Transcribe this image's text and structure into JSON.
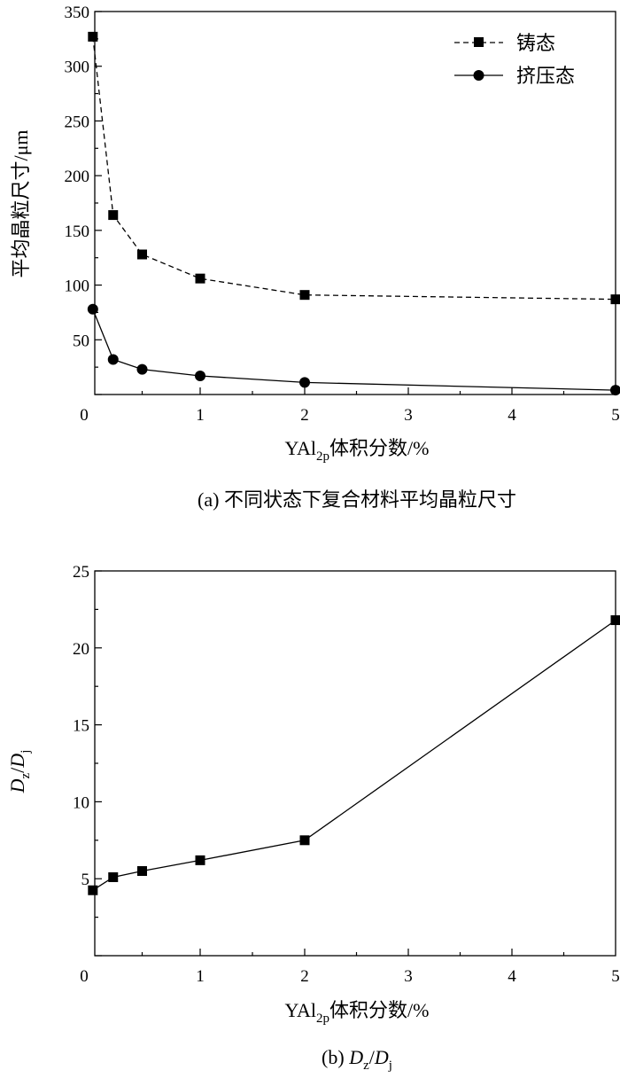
{
  "chart_data": [
    {
      "type": "line",
      "x_ticks": [
        "0",
        "1",
        "2",
        "3",
        "4",
        "5"
      ],
      "y_ticks": [
        "50",
        "100",
        "150",
        "200",
        "250",
        "300",
        "350"
      ],
      "xlabel": {
        "main": "YAl",
        "sub": "2p",
        "rest": "体积分数/%"
      },
      "ylabel": "平均晶粒尺寸/μm",
      "caption": "(a) 不同状态下复合材料平均晶粒尺寸",
      "ylim": [
        0,
        350
      ],
      "legend_position": "top-right",
      "grid": false,
      "series": [
        {
          "name": "铸态",
          "marker": "square",
          "line_style": "dashed",
          "x": [
            0.075,
            0.25,
            0.5,
            1,
            2,
            5
          ],
          "y": [
            327,
            164,
            128,
            106,
            91,
            87
          ]
        },
        {
          "name": "挤压态",
          "marker": "circle",
          "line_style": "solid",
          "x": [
            0.075,
            0.25,
            0.5,
            1,
            2,
            5
          ],
          "y": [
            78,
            32,
            23,
            17,
            11,
            4
          ]
        }
      ]
    },
    {
      "type": "line",
      "x_ticks": [
        "0",
        "1",
        "2",
        "3",
        "4",
        "5"
      ],
      "y_ticks": [
        "5",
        "10",
        "15",
        "20",
        "25"
      ],
      "xlabel": {
        "main": "YAl",
        "sub": "2p",
        "rest": "体积分数/%"
      },
      "ylabel": {
        "a": "D",
        "a_sub": "z",
        "sep": "/",
        "b": "D",
        "b_sub": "j"
      },
      "caption": {
        "prefix": "(b) ",
        "a": "D",
        "a_sub": "z",
        "sep": "/",
        "b": "D",
        "b_sub": "j"
      },
      "ylim": [
        0,
        25
      ],
      "grid": false,
      "series": [
        {
          "marker": "square",
          "line_style": "solid",
          "x": [
            0.075,
            0.25,
            0.5,
            1,
            2,
            5
          ],
          "y": [
            4.25,
            5.1,
            5.5,
            6.2,
            7.5,
            21.8
          ]
        }
      ]
    }
  ]
}
